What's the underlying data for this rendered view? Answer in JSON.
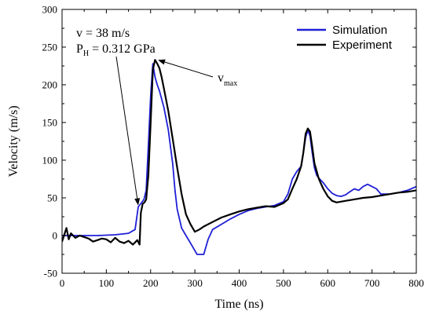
{
  "chart_data": {
    "type": "line",
    "xlabel": "Time (ns)",
    "ylabel": "Velocity (m/s)",
    "xlim": [
      0,
      800
    ],
    "ylim": [
      -50,
      300
    ],
    "xticks": [
      0,
      100,
      200,
      300,
      400,
      500,
      600,
      700,
      800
    ],
    "yticks": [
      -50,
      0,
      50,
      100,
      150,
      200,
      250,
      300
    ],
    "grid": false,
    "legend_position": "top-right",
    "annotations": [
      {
        "id": "v",
        "text": "v = 38 m/s"
      },
      {
        "id": "ph",
        "main": "P",
        "sub": "H",
        "rest": " = 0.312 GPa",
        "arrow_to": [
          172,
          40
        ]
      },
      {
        "id": "vmax",
        "main": "v",
        "sub": "max",
        "arrow_to": [
          213,
          233
        ]
      }
    ],
    "series": [
      {
        "name": "Simulation",
        "color": "#1f1fd6",
        "x": [
          0,
          40,
          80,
          120,
          150,
          165,
          172,
          180,
          185,
          190,
          195,
          200,
          205,
          210,
          215,
          220,
          230,
          240,
          250,
          255,
          260,
          270,
          280,
          290,
          300,
          305,
          310,
          320,
          330,
          340,
          360,
          380,
          400,
          420,
          440,
          460,
          480,
          500,
          510,
          520,
          530,
          540,
          545,
          550,
          555,
          560,
          565,
          570,
          575,
          580,
          590,
          600,
          610,
          620,
          630,
          640,
          650,
          660,
          670,
          680,
          690,
          700,
          710,
          720,
          730,
          740,
          760,
          780,
          800
        ],
        "y": [
          0,
          0,
          0,
          1,
          3,
          8,
          38,
          44,
          48,
          60,
          120,
          185,
          228,
          210,
          200,
          192,
          170,
          140,
          95,
          60,
          35,
          10,
          0,
          -10,
          -20,
          -25,
          -25,
          -25,
          -5,
          8,
          15,
          22,
          28,
          33,
          36,
          38,
          40,
          45,
          55,
          75,
          85,
          92,
          110,
          130,
          140,
          132,
          110,
          90,
          80,
          76,
          70,
          62,
          56,
          53,
          52,
          54,
          58,
          62,
          60,
          65,
          68,
          65,
          62,
          55,
          55,
          55,
          57,
          60,
          65
        ]
      },
      {
        "name": "Experiment",
        "color": "#000000",
        "x": [
          0,
          10,
          15,
          20,
          30,
          40,
          50,
          60,
          70,
          80,
          90,
          100,
          110,
          120,
          130,
          140,
          150,
          160,
          170,
          175,
          178,
          182,
          186,
          190,
          195,
          200,
          205,
          210,
          215,
          220,
          225,
          230,
          240,
          250,
          260,
          270,
          280,
          290,
          300,
          310,
          320,
          340,
          360,
          380,
          400,
          420,
          440,
          460,
          480,
          500,
          510,
          520,
          530,
          540,
          545,
          550,
          555,
          560,
          565,
          570,
          580,
          590,
          600,
          610,
          620,
          640,
          660,
          680,
          700,
          720,
          740,
          760,
          780,
          800
        ],
        "y": [
          -8,
          10,
          -5,
          3,
          -3,
          0,
          -2,
          -4,
          -8,
          -6,
          -4,
          -5,
          -9,
          -3,
          -8,
          -10,
          -7,
          -12,
          -6,
          -12,
          30,
          42,
          44,
          48,
          80,
          150,
          220,
          233,
          228,
          222,
          210,
          195,
          165,
          128,
          90,
          55,
          28,
          15,
          5,
          8,
          12,
          18,
          24,
          28,
          32,
          35,
          37,
          39,
          38,
          43,
          48,
          62,
          75,
          92,
          110,
          135,
          142,
          138,
          118,
          96,
          75,
          62,
          52,
          46,
          44,
          46,
          48,
          50,
          51,
          53,
          55,
          57,
          58,
          60
        ]
      }
    ]
  }
}
